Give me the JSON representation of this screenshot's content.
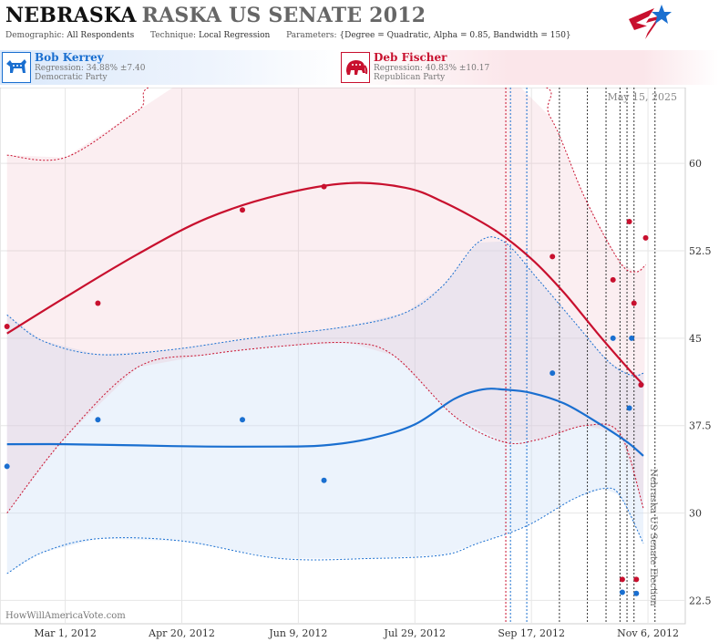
{
  "header": {
    "title_state": "NEBRASKA",
    "title_rest": "RASKA US SENATE 2012",
    "demographic_label": "Demographic:",
    "demographic_value": "All Respondents",
    "technique_label": "Technique:",
    "technique_value": "Local Regression",
    "parameters_label": "Parameters:",
    "parameters_value": "{Degree = Quadratic, Alpha = 0.85, Bandwidth = 150}"
  },
  "candidates": {
    "dem": {
      "name": "Bob Kerrey",
      "regression": "Regression: 34.88% ±7.40",
      "party": "Democratic Party",
      "color": "#1a6fd0"
    },
    "rep": {
      "name": "Deb Fischer",
      "regression": "Regression: 40.83% ±10.17",
      "party": "Republican Party",
      "color": "#c8102e"
    }
  },
  "footer": {
    "credit": "HowWillAmericaVote.com",
    "date_stamp": "May 15, 2025",
    "election_label": "Nebraska US Senate Election"
  },
  "chart_data": {
    "type": "scatter",
    "y_ticks": [
      "60",
      "52.5",
      "45",
      "37.5",
      "30",
      "22.5"
    ],
    "y_tick_values": [
      60,
      52.5,
      45,
      37.5,
      30,
      22.5
    ],
    "x_ticks": [
      "Mar 1, 2012",
      "Apr 20, 2012",
      "Jun 9, 2012",
      "Jul 29, 2012",
      "Sep 17, 2012",
      "Nov 6, 2012"
    ],
    "x_tick_dates": [
      "2012-03-01",
      "2012-04-20",
      "2012-06-09",
      "2012-07-29",
      "2012-09-17",
      "2012-11-06"
    ],
    "x_range": [
      "2012-02-02",
      "2012-11-22"
    ],
    "ylim": [
      20.5,
      66.5
    ],
    "grid": true,
    "vertical_markers": {
      "blue": [
        "2012-09-08",
        "2012-09-15"
      ],
      "red": [
        "2012-09-06"
      ],
      "dark": [
        "2012-09-29",
        "2012-10-11",
        "2012-10-19",
        "2012-10-25",
        "2012-10-28",
        "2012-10-31",
        "2012-11-09"
      ]
    },
    "series": [
      {
        "name": "Bob Kerrey",
        "color": "#1a6fd0",
        "points": [
          [
            "2012-02-05",
            34.0
          ],
          [
            "2012-03-15",
            38.0
          ],
          [
            "2012-05-16",
            38.0
          ],
          [
            "2012-06-20",
            32.8
          ],
          [
            "2012-09-26",
            42.0
          ],
          [
            "2012-10-22",
            45.0
          ],
          [
            "2012-10-30",
            45.0
          ],
          [
            "2012-10-29",
            39.0
          ],
          [
            "2012-11-03",
            41.0
          ],
          [
            "2012-10-26",
            23.2
          ],
          [
            "2012-11-01",
            23.1
          ]
        ],
        "trend": [
          [
            "2012-02-05",
            35.9
          ],
          [
            "2012-03-01",
            35.9
          ],
          [
            "2012-04-01",
            35.8
          ],
          [
            "2012-05-01",
            35.7
          ],
          [
            "2012-06-01",
            35.7
          ],
          [
            "2012-06-20",
            35.8
          ],
          [
            "2012-07-10",
            36.4
          ],
          [
            "2012-07-29",
            37.6
          ],
          [
            "2012-08-15",
            39.8
          ],
          [
            "2012-08-27",
            40.6
          ],
          [
            "2012-09-05",
            40.6
          ],
          [
            "2012-09-17",
            40.3
          ],
          [
            "2012-10-01",
            39.4
          ],
          [
            "2012-10-15",
            37.8
          ],
          [
            "2012-10-28",
            36.1
          ],
          [
            "2012-11-04",
            34.9
          ]
        ],
        "upper": [
          [
            "2012-02-05",
            47.0
          ],
          [
            "2012-02-20",
            44.8
          ],
          [
            "2012-03-15",
            43.6
          ],
          [
            "2012-04-15",
            44.0
          ],
          [
            "2012-05-20",
            45.0
          ],
          [
            "2012-06-30",
            46.0
          ],
          [
            "2012-07-25",
            47.2
          ],
          [
            "2012-08-10",
            49.5
          ],
          [
            "2012-08-25",
            53.2
          ],
          [
            "2012-09-05",
            53.3
          ],
          [
            "2012-09-20",
            50.0
          ],
          [
            "2012-10-05",
            46.5
          ],
          [
            "2012-10-20",
            43.0
          ],
          [
            "2012-10-30",
            41.8
          ],
          [
            "2012-11-04",
            42.0
          ]
        ],
        "lower": [
          [
            "2012-02-05",
            24.8
          ],
          [
            "2012-02-20",
            26.6
          ],
          [
            "2012-03-15",
            27.8
          ],
          [
            "2012-04-20",
            27.6
          ],
          [
            "2012-06-01",
            26.1
          ],
          [
            "2012-07-10",
            26.1
          ],
          [
            "2012-08-10",
            26.4
          ],
          [
            "2012-08-25",
            27.4
          ],
          [
            "2012-09-15",
            28.9
          ],
          [
            "2012-10-05",
            31.2
          ],
          [
            "2012-10-18",
            32.1
          ],
          [
            "2012-10-25",
            31.5
          ],
          [
            "2012-11-04",
            27.4
          ]
        ]
      },
      {
        "name": "Deb Fischer",
        "color": "#c8102e",
        "points": [
          [
            "2012-02-05",
            46.0
          ],
          [
            "2012-03-15",
            48.0
          ],
          [
            "2012-05-16",
            56.0
          ],
          [
            "2012-06-20",
            58.0
          ],
          [
            "2012-09-26",
            52.0
          ],
          [
            "2012-10-22",
            50.0
          ],
          [
            "2012-10-29",
            55.0
          ],
          [
            "2012-10-31",
            48.0
          ],
          [
            "2012-11-05",
            53.6
          ],
          [
            "2012-11-03",
            41.0
          ],
          [
            "2012-10-26",
            24.3
          ],
          [
            "2012-11-01",
            24.3
          ]
        ],
        "trend": [
          [
            "2012-02-05",
            45.4
          ],
          [
            "2012-03-01",
            48.5
          ],
          [
            "2012-04-01",
            52.2
          ],
          [
            "2012-05-01",
            55.3
          ],
          [
            "2012-06-01",
            57.3
          ],
          [
            "2012-07-01",
            58.3
          ],
          [
            "2012-07-25",
            57.9
          ],
          [
            "2012-08-10",
            56.7
          ],
          [
            "2012-09-01",
            54.3
          ],
          [
            "2012-09-17",
            51.8
          ],
          [
            "2012-10-01",
            48.9
          ],
          [
            "2012-10-15",
            45.5
          ],
          [
            "2012-10-28",
            42.5
          ],
          [
            "2012-11-04",
            41.0
          ]
        ],
        "upper": [
          [
            "2012-02-05",
            60.7
          ],
          [
            "2012-03-01",
            60.5
          ],
          [
            "2012-04-01",
            64.5
          ],
          [
            "2012-04-20",
            67.0
          ],
          [
            "2012-09-10",
            67.0
          ],
          [
            "2012-09-25",
            64.0
          ],
          [
            "2012-10-10",
            57.0
          ],
          [
            "2012-10-25",
            51.5
          ],
          [
            "2012-11-01",
            50.7
          ],
          [
            "2012-11-05",
            51.3
          ]
        ],
        "lower": [
          [
            "2012-02-05",
            30.0
          ],
          [
            "2012-03-01",
            36.5
          ],
          [
            "2012-04-01",
            42.5
          ],
          [
            "2012-05-01",
            43.6
          ],
          [
            "2012-06-01",
            44.3
          ],
          [
            "2012-07-01",
            44.6
          ],
          [
            "2012-07-20",
            43.5
          ],
          [
            "2012-08-15",
            38.3
          ],
          [
            "2012-09-05",
            36.1
          ],
          [
            "2012-09-20",
            36.3
          ],
          [
            "2012-10-10",
            37.5
          ],
          [
            "2012-10-25",
            36.8
          ],
          [
            "2012-11-04",
            30.4
          ]
        ]
      }
    ]
  }
}
